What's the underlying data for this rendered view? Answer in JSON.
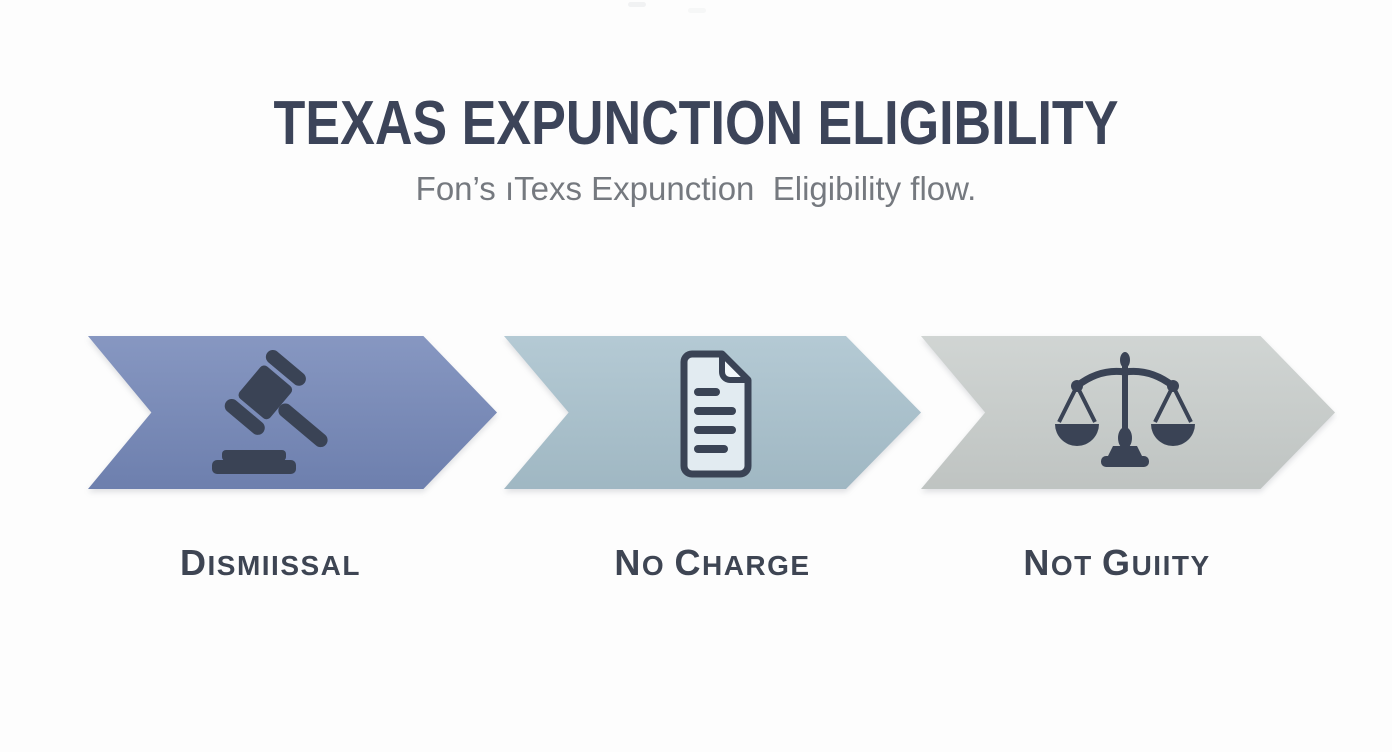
{
  "header": {
    "title": "TEXAS EXPUNCTION ELIGIBILITY",
    "subtitle": "Fon’s ıTexs Expunction  Eligibility flow."
  },
  "flow": {
    "steps": [
      {
        "label": "DISMIISSAL",
        "icon": "gavel-icon",
        "fill": "#7386b7"
      },
      {
        "label": "NO CHARGE",
        "icon": "document-icon",
        "fill": "#a8c1cd"
      },
      {
        "label": "NOT GUIITY",
        "icon": "scales-icon",
        "fill": "#c9cecc"
      }
    ]
  },
  "colors": {
    "background": "#fdfdfd",
    "title_text": "#3c4459",
    "subtitle_text": "#75797f",
    "label_text": "#3e4553",
    "icon_dark": "#3a4355",
    "document_paper": "#e2ebf1",
    "document_fold": "#f2f7fa"
  }
}
